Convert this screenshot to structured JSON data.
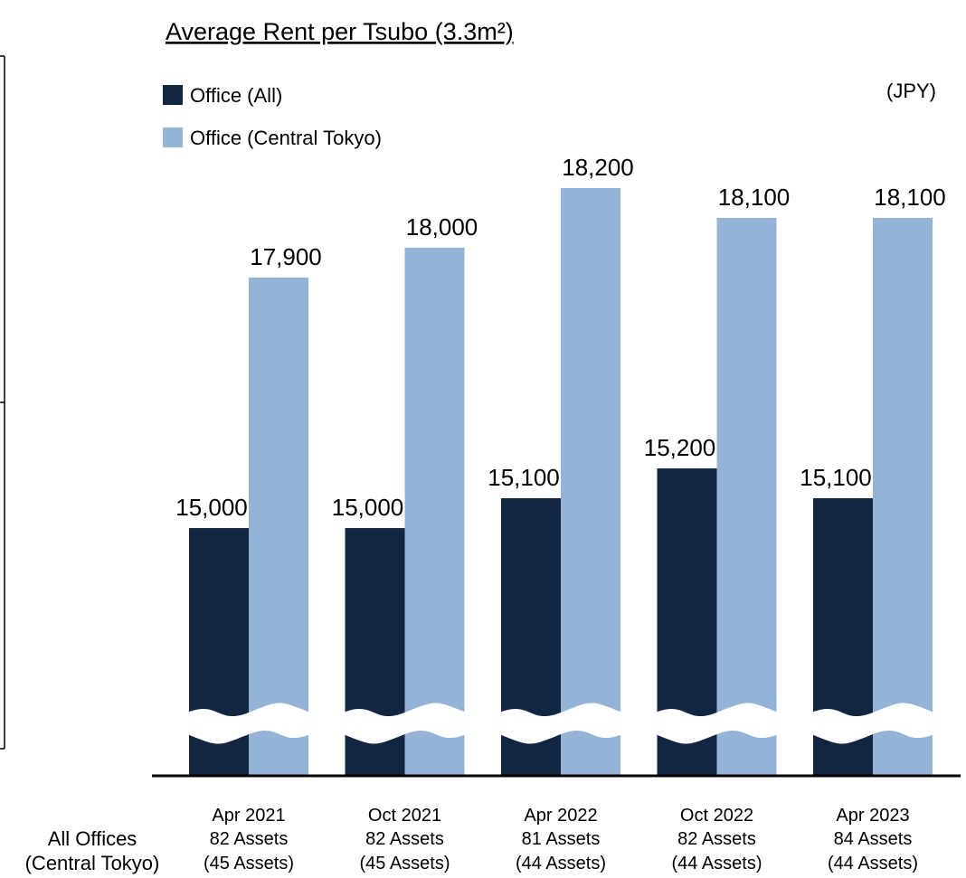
{
  "chart_data": {
    "type": "bar",
    "title": "Average Rent per Tsubo (3.3m²)",
    "unit": "(JPY)",
    "categories": [
      "Apr 2021",
      "Oct 2021",
      "Apr 2022",
      "Oct 2022",
      "Apr 2023"
    ],
    "assets_all": [
      "82 Assets",
      "82 Assets",
      "81 Assets",
      "82 Assets",
      "84 Assets"
    ],
    "assets_central": [
      "(45 Assets)",
      "(45 Assets)",
      "(44 Assets)",
      "(44 Assets)",
      "(44 Assets)"
    ],
    "row_labels": [
      "All Offices",
      "(Central Tokyo)"
    ],
    "series": [
      {
        "name": "Office (All)",
        "color": "#132641",
        "values": [
          15000,
          15000,
          15100,
          15200,
          15100
        ],
        "value_labels": [
          "15,000",
          "15,000",
          "15,100",
          "15,200",
          "15,100"
        ]
      },
      {
        "name": "Office (Central Tokyo)",
        "color": "#95b3d7",
        "values": [
          17900,
          18000,
          18200,
          18100,
          18100
        ],
        "value_labels": [
          "17,900",
          "18,000",
          "18,200",
          "18,100",
          "18,100"
        ]
      }
    ],
    "ylim": [
      14170,
      18400
    ],
    "axis_break": [
      15300,
      17360
    ]
  }
}
